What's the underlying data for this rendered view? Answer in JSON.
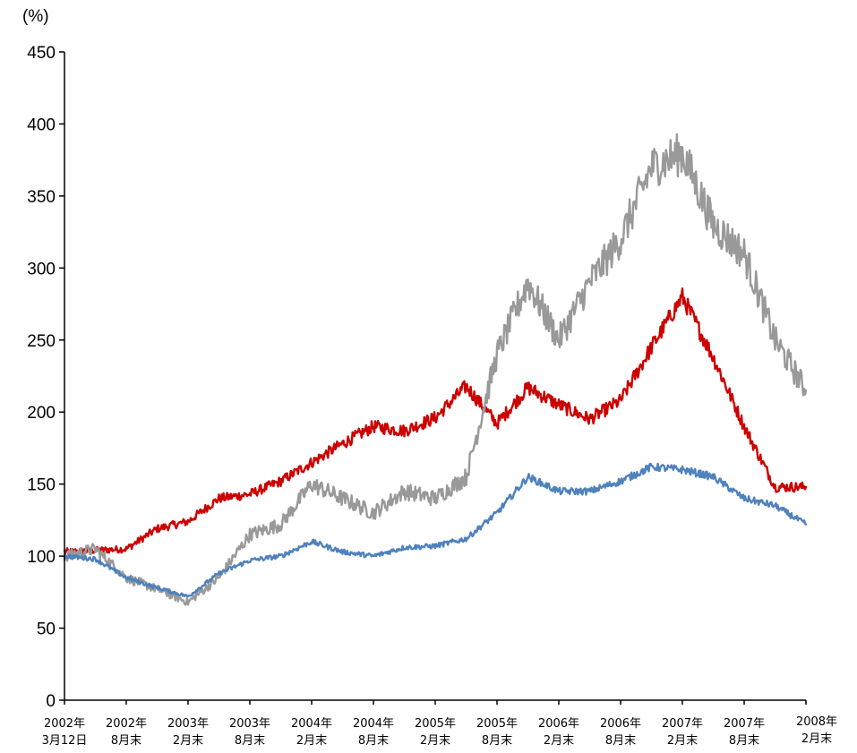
{
  "chart_data": {
    "type": "line",
    "ylabel": "(%)",
    "ylim": [
      0,
      450
    ],
    "yticks": [
      0,
      50,
      100,
      150,
      200,
      250,
      300,
      350,
      400,
      450
    ],
    "xtick_labels": [
      [
        "2002年",
        "3月12日"
      ],
      [
        "2002年",
        "8月末"
      ],
      [
        "2003年",
        "2月末"
      ],
      [
        "2003年",
        "8月末"
      ],
      [
        "2004年",
        "2月末"
      ],
      [
        "2004年",
        "8月末"
      ],
      [
        "2005年",
        "2月末"
      ],
      [
        "2005年",
        "8月末"
      ],
      [
        "2006年",
        "2月末"
      ],
      [
        "2006年",
        "8月末"
      ],
      [
        "2007年",
        "2月末"
      ],
      [
        "2007年",
        "8月末"
      ],
      [
        "2008年",
        "2月末"
      ]
    ],
    "x": [
      0,
      0.5,
      1,
      1.5,
      2,
      2.5,
      3,
      3.5,
      4,
      4.5,
      5,
      5.5,
      6,
      6.5,
      7,
      7.5,
      8,
      8.5,
      9,
      9.5,
      10,
      10.5,
      11,
      11.5,
      12
    ],
    "series": [
      {
        "color": "#cc0000",
        "values": [
          103,
          104,
          105,
          119,
          124,
          140,
          143,
          152,
          165,
          178,
          190,
          187,
          196,
          218,
          192,
          217,
          205,
          195,
          208,
          245,
          280,
          238,
          190,
          148,
          148
        ]
      },
      {
        "color": "#999999",
        "values": [
          100,
          105,
          85,
          77,
          68,
          85,
          115,
          122,
          150,
          140,
          130,
          145,
          140,
          155,
          240,
          290,
          250,
          290,
          320,
          370,
          380,
          330,
          310,
          250,
          215
        ]
      },
      {
        "color": "#4f81bd",
        "values": [
          100,
          98,
          85,
          78,
          72,
          88,
          97,
          100,
          110,
          103,
          100,
          106,
          107,
          112,
          130,
          155,
          145,
          145,
          152,
          162,
          160,
          155,
          140,
          135,
          122
        ]
      }
    ]
  }
}
